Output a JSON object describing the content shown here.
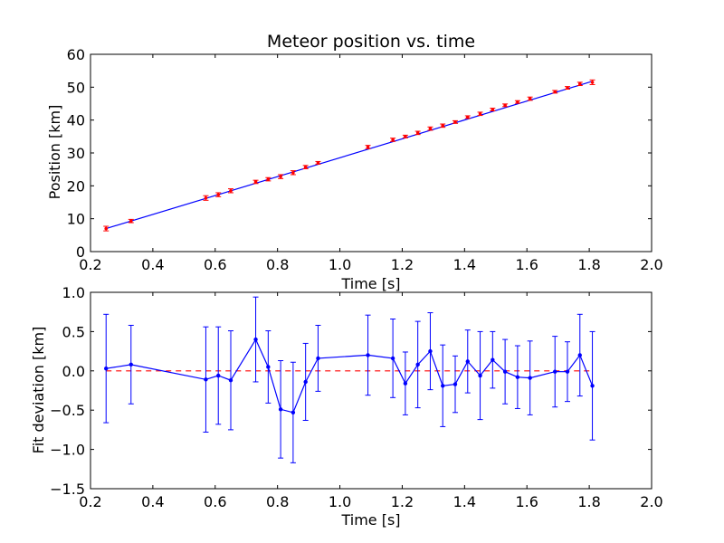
{
  "chart_data": [
    {
      "type": "line",
      "title": "Meteor position vs. time",
      "xlabel": "Time [s]",
      "ylabel": "Position [km]",
      "xlim": [
        0.2,
        2.0
      ],
      "ylim": [
        0,
        60
      ],
      "xticks": [
        "0.2",
        "0.4",
        "0.6",
        "0.8",
        "1.0",
        "1.2",
        "1.4",
        "1.6",
        "1.8",
        "2.0"
      ],
      "yticks": [
        "0",
        "10",
        "20",
        "30",
        "40",
        "50",
        "60"
      ],
      "grid": false,
      "series": [
        {
          "kind": "fit-line",
          "color": "#0000ff",
          "x": [
            0.25,
            1.81
          ],
          "y": [
            7.0,
            51.8
          ]
        },
        {
          "kind": "points-with-errorbars",
          "color": "#ff0000",
          "x": [
            0.25,
            0.33,
            0.57,
            0.61,
            0.65,
            0.73,
            0.77,
            0.81,
            0.85,
            0.89,
            0.93,
            1.09,
            1.17,
            1.21,
            1.25,
            1.29,
            1.33,
            1.37,
            1.41,
            1.45,
            1.49,
            1.53,
            1.57,
            1.61,
            1.69,
            1.73,
            1.77,
            1.81
          ],
          "y": [
            7.0,
            9.3,
            16.3,
            17.3,
            18.5,
            21.2,
            22.0,
            22.8,
            24.0,
            25.7,
            27.0,
            31.8,
            34.0,
            35.0,
            36.1,
            37.4,
            38.3,
            39.4,
            40.9,
            41.9,
            43.2,
            44.5,
            45.5,
            46.5,
            48.6,
            49.8,
            51.0,
            51.5
          ],
          "yerr": [
            0.7,
            0.5,
            0.7,
            0.6,
            0.6,
            0.5,
            0.5,
            0.6,
            0.6,
            0.5,
            0.4,
            0.5,
            0.5,
            0.4,
            0.5,
            0.5,
            0.5,
            0.4,
            0.4,
            0.5,
            0.4,
            0.4,
            0.4,
            0.5,
            0.4,
            0.4,
            0.5,
            0.7
          ]
        }
      ]
    },
    {
      "type": "line",
      "title": "",
      "xlabel": "Time [s]",
      "ylabel": "Fit deviation [km]",
      "xlim": [
        0.2,
        2.0
      ],
      "ylim": [
        -1.5,
        1.0
      ],
      "xticks": [
        "0.2",
        "0.4",
        "0.6",
        "0.8",
        "1.0",
        "1.2",
        "1.4",
        "1.6",
        "1.8",
        "2.0"
      ],
      "yticks": [
        "−1.5",
        "−1.0",
        "−0.5",
        "0.0",
        "0.5",
        "1.0"
      ],
      "grid": false,
      "reference_line": {
        "y": 0.0,
        "color": "#ff0000",
        "style": "dashed"
      },
      "series": [
        {
          "kind": "line-with-errorbars",
          "color": "#0000ff",
          "x": [
            0.25,
            0.33,
            0.57,
            0.61,
            0.65,
            0.73,
            0.77,
            0.81,
            0.85,
            0.89,
            0.93,
            1.09,
            1.17,
            1.21,
            1.25,
            1.29,
            1.33,
            1.37,
            1.41,
            1.45,
            1.49,
            1.53,
            1.57,
            1.61,
            1.69,
            1.73,
            1.77,
            1.81
          ],
          "y": [
            0.03,
            0.08,
            -0.11,
            -0.06,
            -0.12,
            0.4,
            0.05,
            -0.49,
            -0.53,
            -0.14,
            0.16,
            0.2,
            0.16,
            -0.16,
            0.08,
            0.25,
            -0.19,
            -0.17,
            0.12,
            -0.06,
            0.14,
            -0.01,
            -0.08,
            -0.09,
            -0.01,
            -0.01,
            0.2,
            -0.19
          ],
          "yerr": [
            0.69,
            0.5,
            0.67,
            0.62,
            0.63,
            0.54,
            0.46,
            0.62,
            0.64,
            0.49,
            0.42,
            0.51,
            0.5,
            0.4,
            0.55,
            0.49,
            0.52,
            0.36,
            0.4,
            0.56,
            0.36,
            0.41,
            0.4,
            0.47,
            0.45,
            0.38,
            0.52,
            0.69
          ]
        }
      ]
    }
  ]
}
